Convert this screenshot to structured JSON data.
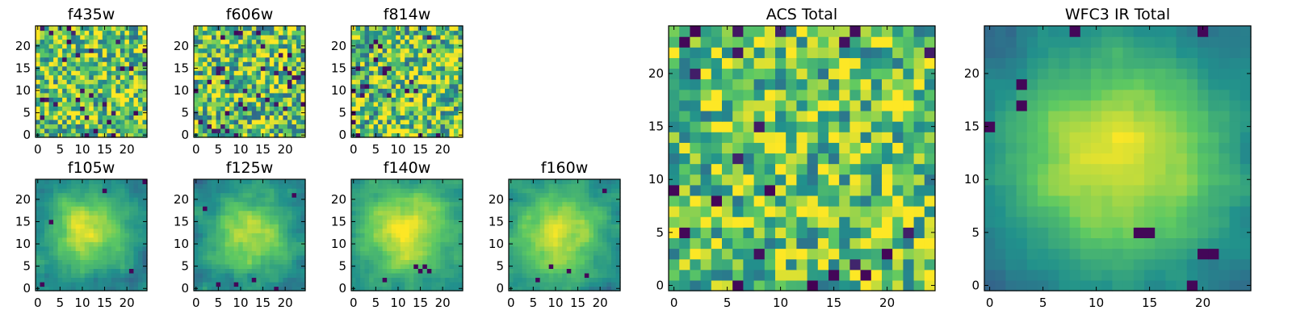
{
  "figure": {
    "colormap": "viridis",
    "colormap_stops": [
      "#440154",
      "#3b528b",
      "#21918c",
      "#5ec962",
      "#fde725"
    ]
  },
  "chart_data": [
    {
      "type": "heatmap",
      "title": "f435w",
      "grid": false,
      "xlim": [
        -0.5,
        24.5
      ],
      "ylim": [
        -0.5,
        24.5
      ],
      "xticks": [
        "0",
        "5",
        "10",
        "15",
        "20"
      ],
      "yticks": [
        "0",
        "5",
        "10",
        "15",
        "20"
      ],
      "field": {
        "kind": "noise",
        "seed": 11,
        "base": 0.72,
        "amp": 0.38,
        "holes": 0.045
      }
    },
    {
      "type": "heatmap",
      "title": "f606w",
      "grid": false,
      "xlim": [
        -0.5,
        24.5
      ],
      "ylim": [
        -0.5,
        24.5
      ],
      "xticks": [
        "0",
        "5",
        "10",
        "15",
        "20"
      ],
      "yticks": [
        "0",
        "5",
        "10",
        "15",
        "20"
      ],
      "field": {
        "kind": "noise",
        "seed": 23,
        "base": 0.72,
        "amp": 0.4,
        "holes": 0.05
      }
    },
    {
      "type": "heatmap",
      "title": "f814w",
      "grid": false,
      "xlim": [
        -0.5,
        24.5
      ],
      "ylim": [
        -0.5,
        24.5
      ],
      "xticks": [
        "0",
        "5",
        "10",
        "15",
        "20"
      ],
      "yticks": [
        "0",
        "5",
        "10",
        "15",
        "20"
      ],
      "field": {
        "kind": "noise",
        "seed": 37,
        "base": 0.72,
        "amp": 0.4,
        "holes": 0.045
      }
    },
    {
      "type": "heatmap",
      "title": "f105w",
      "grid": false,
      "xlim": [
        -0.5,
        24.5
      ],
      "ylim": [
        -0.5,
        24.5
      ],
      "xticks": [
        "0",
        "5",
        "10",
        "15",
        "20"
      ],
      "yticks": [
        "0",
        "5",
        "10",
        "15",
        "20"
      ],
      "field": {
        "kind": "smooth",
        "seed": 51,
        "center": [
          11,
          13
        ],
        "radius": 9,
        "lo": 0.42,
        "hi": 0.95,
        "noise": 0.2,
        "dark": [
          [
            15,
            22
          ],
          [
            3,
            15
          ],
          [
            21,
            4
          ],
          [
            1,
            1
          ],
          [
            24,
            24
          ]
        ]
      }
    },
    {
      "type": "heatmap",
      "title": "f125w",
      "grid": false,
      "xlim": [
        -0.5,
        24.5
      ],
      "ylim": [
        -0.5,
        24.5
      ],
      "xticks": [
        "0",
        "5",
        "10",
        "15",
        "20"
      ],
      "yticks": [
        "0",
        "5",
        "10",
        "15",
        "20"
      ],
      "field": {
        "kind": "smooth",
        "seed": 63,
        "center": [
          12,
          12
        ],
        "radius": 9,
        "lo": 0.42,
        "hi": 0.95,
        "noise": 0.22,
        "dark": [
          [
            5,
            1
          ],
          [
            9,
            1
          ],
          [
            13,
            2
          ],
          [
            18,
            0
          ],
          [
            22,
            21
          ],
          [
            2,
            18
          ]
        ]
      }
    },
    {
      "type": "heatmap",
      "title": "f140w",
      "grid": false,
      "xlim": [
        -0.5,
        24.5
      ],
      "ylim": [
        -0.5,
        24.5
      ],
      "xticks": [
        "0",
        "5",
        "10",
        "15",
        "20"
      ],
      "yticks": [
        "0",
        "5",
        "10",
        "15",
        "20"
      ],
      "field": {
        "kind": "smooth",
        "seed": 71,
        "center": [
          12,
          13
        ],
        "radius": 10,
        "lo": 0.48,
        "hi": 0.97,
        "noise": 0.2,
        "dark": [
          [
            14,
            5
          ],
          [
            15,
            4
          ],
          [
            16,
            5
          ],
          [
            17,
            4
          ],
          [
            7,
            2
          ]
        ]
      }
    },
    {
      "type": "heatmap",
      "title": "f160w",
      "grid": false,
      "xlim": [
        -0.5,
        24.5
      ],
      "ylim": [
        -0.5,
        24.5
      ],
      "xticks": [
        "0",
        "5",
        "10",
        "15",
        "20"
      ],
      "yticks": [
        "0",
        "5",
        "10",
        "15",
        "20"
      ],
      "field": {
        "kind": "smooth",
        "seed": 83,
        "center": [
          11,
          12
        ],
        "radius": 10,
        "lo": 0.45,
        "hi": 0.96,
        "noise": 0.2,
        "dark": [
          [
            9,
            5
          ],
          [
            13,
            4
          ],
          [
            17,
            3
          ],
          [
            6,
            2
          ],
          [
            21,
            22
          ]
        ]
      }
    },
    {
      "type": "heatmap",
      "title": "ACS Total",
      "grid": false,
      "xlim": [
        -0.5,
        24.5
      ],
      "ylim": [
        -0.5,
        24.5
      ],
      "xticks": [
        "0",
        "5",
        "10",
        "15",
        "20"
      ],
      "yticks": [
        "0",
        "5",
        "10",
        "15",
        "20"
      ],
      "field": {
        "kind": "noise",
        "seed": 97,
        "base": 0.72,
        "amp": 0.34,
        "holes": 0.035,
        "dark": [
          [
            1,
            23
          ],
          [
            0,
            9
          ],
          [
            6,
            0
          ],
          [
            15,
            1
          ],
          [
            20,
            3
          ],
          [
            9,
            9
          ],
          [
            4,
            8
          ]
        ]
      }
    },
    {
      "type": "heatmap",
      "title": "WFC3 IR Total",
      "grid": false,
      "xlim": [
        -0.5,
        24.5
      ],
      "ylim": [
        -0.5,
        24.5
      ],
      "xticks": [
        "0",
        "5",
        "10",
        "15",
        "20"
      ],
      "yticks": [
        "0",
        "5",
        "10",
        "15",
        "20"
      ],
      "field": {
        "kind": "smooth",
        "seed": 109,
        "center": [
          12,
          12
        ],
        "radius": 11,
        "lo": 0.32,
        "hi": 0.98,
        "noise": 0.14,
        "dark": [
          [
            0,
            15
          ],
          [
            3,
            19
          ],
          [
            3,
            17
          ],
          [
            14,
            5
          ],
          [
            15,
            5
          ],
          [
            20,
            3
          ],
          [
            21,
            3
          ],
          [
            19,
            0
          ],
          [
            8,
            24
          ],
          [
            20,
            24
          ]
        ]
      }
    }
  ]
}
